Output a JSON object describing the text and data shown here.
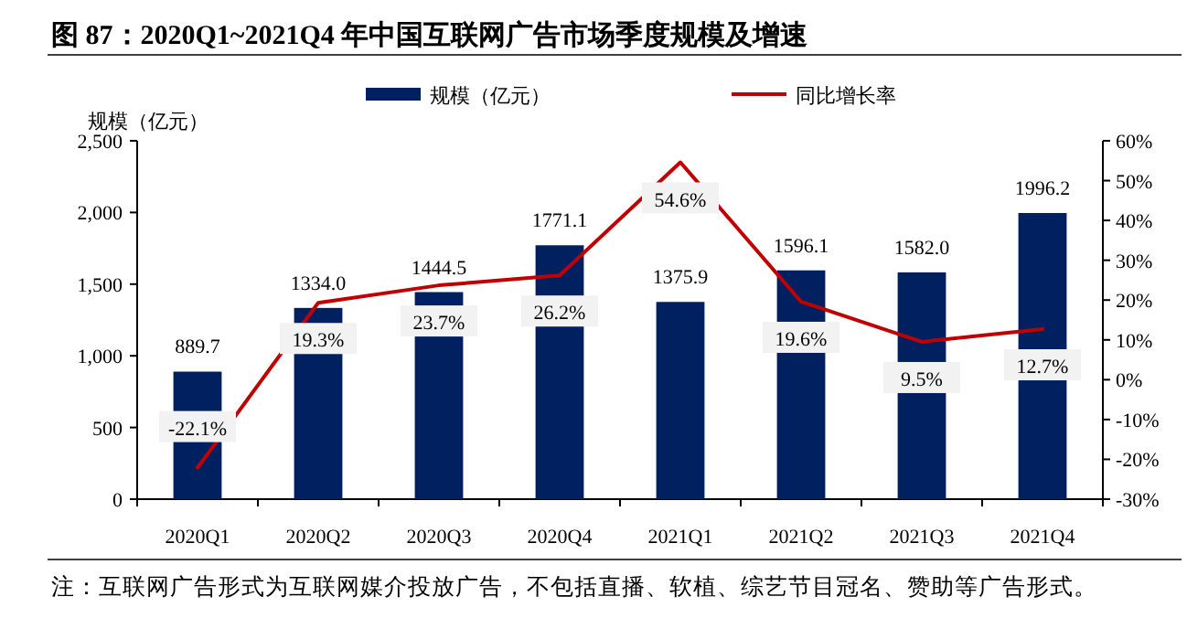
{
  "chart_data": {
    "type": "bar",
    "title": "图 87：2020Q1~2021Q4 年中国互联网广告市场季度规模及增速",
    "categories": [
      "2020Q1",
      "2020Q2",
      "2020Q3",
      "2020Q4",
      "2021Q1",
      "2021Q2",
      "2021Q3",
      "2021Q4"
    ],
    "series": [
      {
        "name": "规模（亿元）",
        "color": "#002060",
        "values": [
          889.7,
          1334.0,
          1444.5,
          1771.1,
          1375.9,
          1596.1,
          1582.0,
          1996.2
        ],
        "value_labels": [
          "889.7",
          "1334.0",
          "1444.5",
          "1771.1",
          "1375.9",
          "1596.1",
          "1582.0",
          "1996.2"
        ]
      },
      {
        "name": "同比增长率",
        "type": "line",
        "axis": "y2",
        "color": "#c00000",
        "values": [
          -22.1,
          19.3,
          23.7,
          26.2,
          54.6,
          19.6,
          9.5,
          12.7
        ],
        "value_labels": [
          "-22.1%",
          "19.3%",
          "23.7%",
          "26.2%",
          "54.6%",
          "19.6%",
          "9.5%",
          "12.7%"
        ]
      }
    ],
    "ylabel": "规模（亿元）",
    "ylim": [
      0,
      2500
    ],
    "yticks": [
      {
        "value": 0,
        "label": "0"
      },
      {
        "value": 500,
        "label": "500"
      },
      {
        "value": 1000,
        "label": "1,000"
      },
      {
        "value": 1500,
        "label": "1,500"
      },
      {
        "value": 2000,
        "label": "2,000"
      },
      {
        "value": 2500,
        "label": "2,500"
      }
    ],
    "y2lim": [
      -30,
      60
    ],
    "y2ticks": [
      {
        "value": -30,
        "label": "-30%"
      },
      {
        "value": -20,
        "label": "-20%"
      },
      {
        "value": -10,
        "label": "-10%"
      },
      {
        "value": 0,
        "label": "0%"
      },
      {
        "value": 10,
        "label": "10%"
      },
      {
        "value": 20,
        "label": "20%"
      },
      {
        "value": 30,
        "label": "30%"
      },
      {
        "value": 40,
        "label": "40%"
      },
      {
        "value": 50,
        "label": "50%"
      },
      {
        "value": 60,
        "label": "60%"
      }
    ],
    "legend": "top",
    "grid": false,
    "annotations": [
      "注：互联网广告形式为互联网媒介投放广告，不包括直播、软植、综艺节目冠名、赞助等广告形式。"
    ]
  }
}
